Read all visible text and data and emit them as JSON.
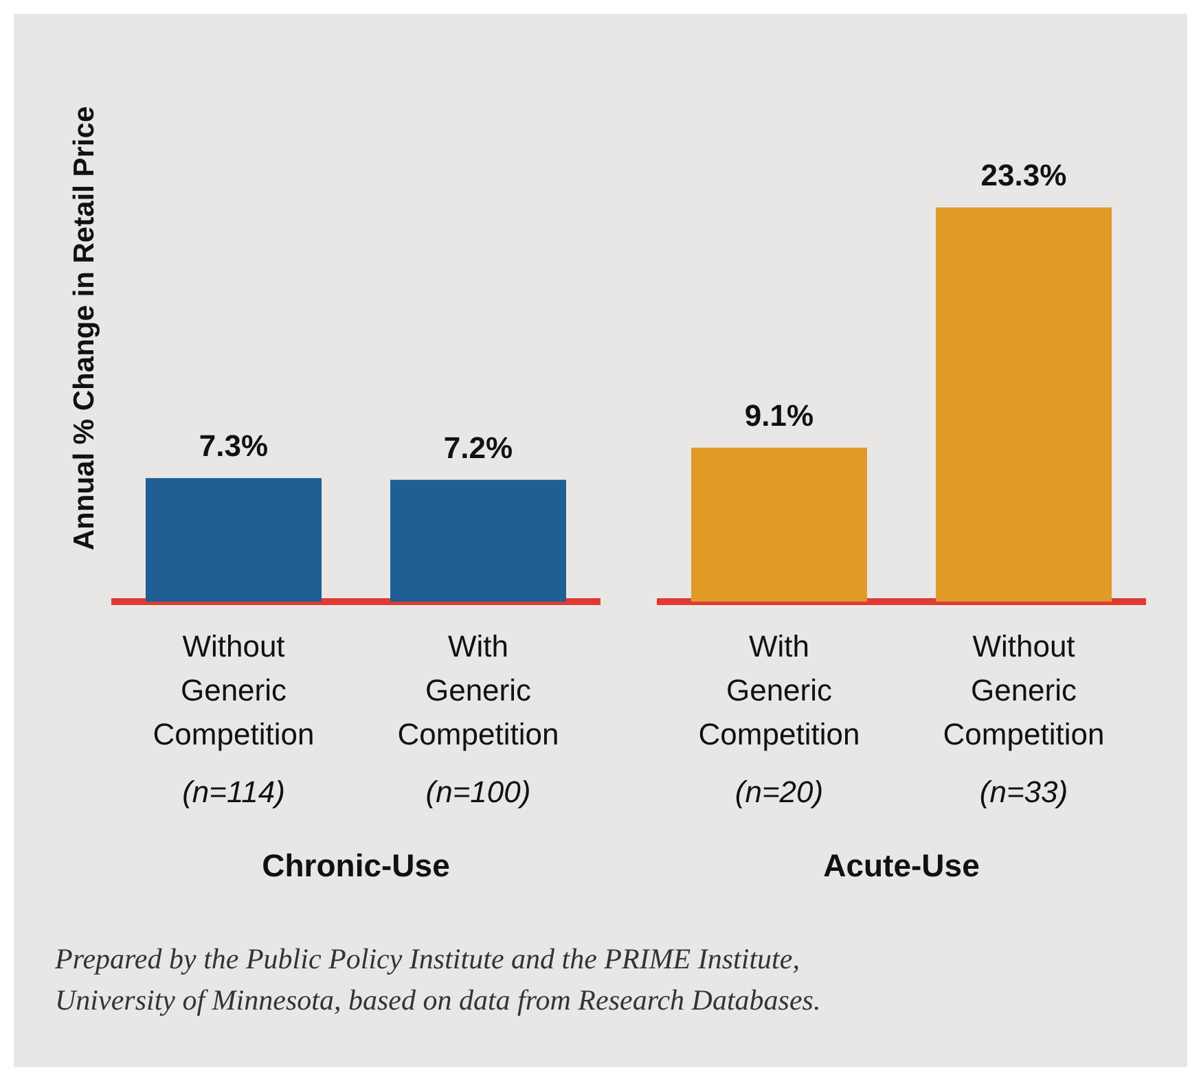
{
  "chart_data": {
    "type": "bar",
    "ylabel": "Annual % Change in  Retail Price",
    "categories": [
      "Without\nGeneric\nCompetition\n(n=114)",
      "With\nGeneric\nCompetition\n(n=100)",
      "With\nGeneric\nCompetition\n(n=20)",
      "Without\nGeneric\nCompetition\n(n=33)"
    ],
    "values": [
      7.3,
      7.2,
      9.1,
      23.3
    ],
    "colors": [
      "#1f5f93",
      "#1f5f93",
      "#e09a28",
      "#e09a28"
    ],
    "value_labels": [
      "7.3%",
      "7.2%",
      "9.1%",
      "23.3%"
    ],
    "annotations": [
      "Chronic-Use",
      "Acute-Use",
      "Prepared by the Public Policy Institute and the PRIME Institute, University of Minnesota, based on data from Research Databases."
    ]
  }
}
